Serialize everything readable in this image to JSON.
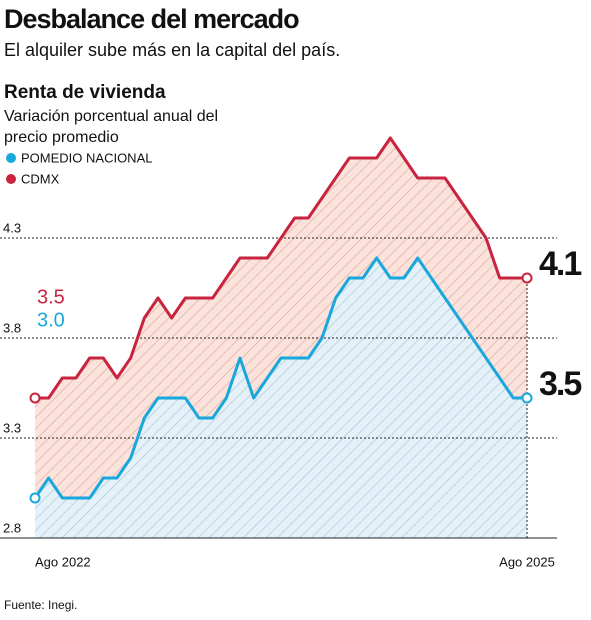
{
  "chart_data": {
    "type": "line",
    "title": "Desbalance del mercado",
    "subtitle": "El alquiler sube más en la capital del país.",
    "chart_title": "Renta de vivienda",
    "chart_subtitle": "Variación porcentual anual del precio promedio",
    "source": "Fuente: Inegi.",
    "categories": [
      "Ago 2022",
      null,
      null,
      null,
      null,
      null,
      null,
      null,
      null,
      null,
      null,
      null,
      null,
      null,
      null,
      null,
      null,
      null,
      null,
      null,
      null,
      null,
      null,
      null,
      null,
      null,
      null,
      null,
      null,
      null,
      null,
      null,
      null,
      null,
      null,
      null,
      "Ago 2025"
    ],
    "series": [
      {
        "name": "POMEDIO NACIONAL",
        "color": "#1aa7dc",
        "values": [
          3.0,
          3.1,
          3.0,
          3.0,
          3.0,
          3.1,
          3.1,
          3.2,
          3.4,
          3.5,
          3.5,
          3.5,
          3.4,
          3.4,
          3.5,
          3.7,
          3.5,
          3.6,
          3.7,
          3.7,
          3.7,
          3.8,
          4.0,
          4.1,
          4.1,
          4.2,
          4.1,
          4.1,
          4.2,
          4.1,
          4.0,
          3.9,
          3.8,
          3.7,
          3.6,
          3.5,
          3.5
        ],
        "value_labels": [
          "3.0",
          null,
          null,
          null,
          null,
          null,
          null,
          null,
          null,
          null,
          null,
          null,
          null,
          null,
          null,
          null,
          null,
          null,
          null,
          null,
          null,
          null,
          null,
          null,
          null,
          null,
          null,
          null,
          null,
          null,
          null,
          null,
          null,
          null,
          null,
          null,
          "3.5"
        ]
      },
      {
        "name": "CDMX",
        "color": "#c8243f",
        "values": [
          3.5,
          3.5,
          3.6,
          3.6,
          3.7,
          3.7,
          3.6,
          3.7,
          3.9,
          4.0,
          3.9,
          4.0,
          4.0,
          4.0,
          4.1,
          4.2,
          4.2,
          4.2,
          4.3,
          4.4,
          4.4,
          4.5,
          4.6,
          4.7,
          4.7,
          4.7,
          4.8,
          4.7,
          4.6,
          4.6,
          4.6,
          4.5,
          4.4,
          4.3,
          4.1,
          4.1,
          4.1
        ],
        "value_labels": [
          "3.5",
          null,
          null,
          null,
          null,
          null,
          null,
          null,
          null,
          null,
          null,
          null,
          null,
          null,
          null,
          null,
          null,
          null,
          null,
          null,
          null,
          null,
          null,
          null,
          null,
          null,
          null,
          null,
          null,
          null,
          null,
          null,
          null,
          null,
          null,
          null,
          "4.1"
        ]
      }
    ],
    "ylim": [
      2.8,
      4.8
    ],
    "yticks": [
      2.8,
      3.3,
      3.8,
      4.3
    ],
    "grid": true
  }
}
